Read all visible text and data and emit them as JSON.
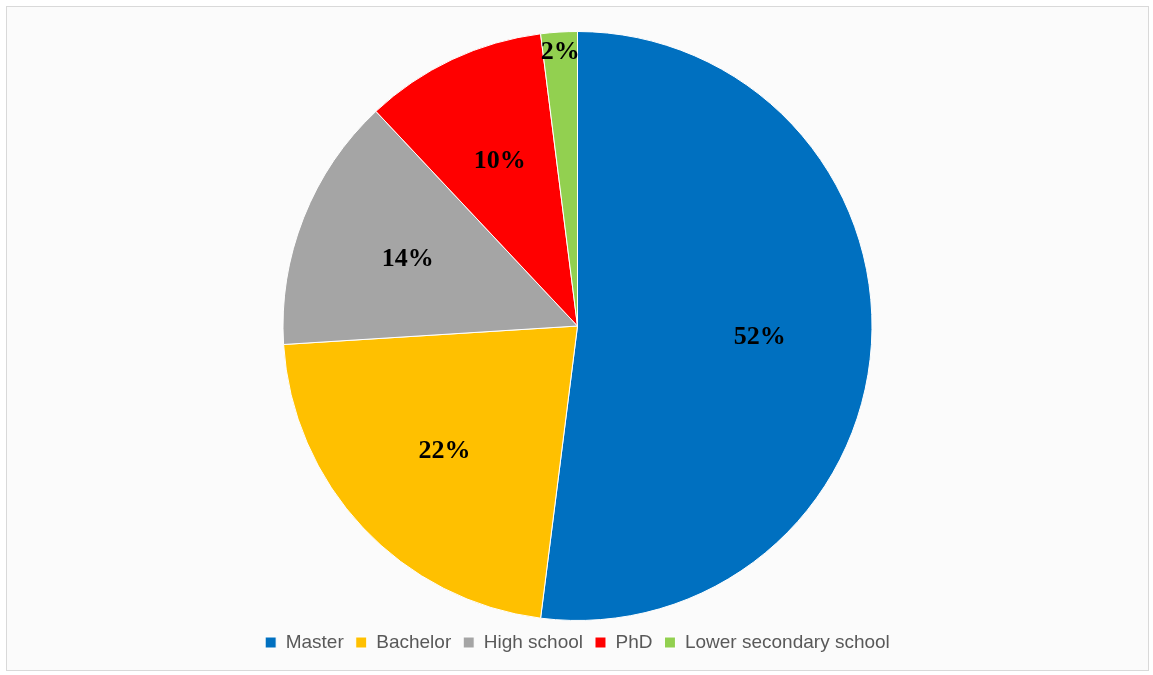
{
  "chart_data": {
    "type": "pie",
    "categories": [
      "Master",
      "Bachelor",
      "High school",
      "PhD",
      "Lower secondary school"
    ],
    "values": [
      52,
      22,
      14,
      10,
      2
    ],
    "colors": [
      "#0070c0",
      "#ffc000",
      "#a5a5a5",
      "#ff0000",
      "#92d050"
    ],
    "value_labels": [
      "52%",
      "22%",
      "14%",
      "10%",
      "2%"
    ],
    "legend": "bottom"
  }
}
